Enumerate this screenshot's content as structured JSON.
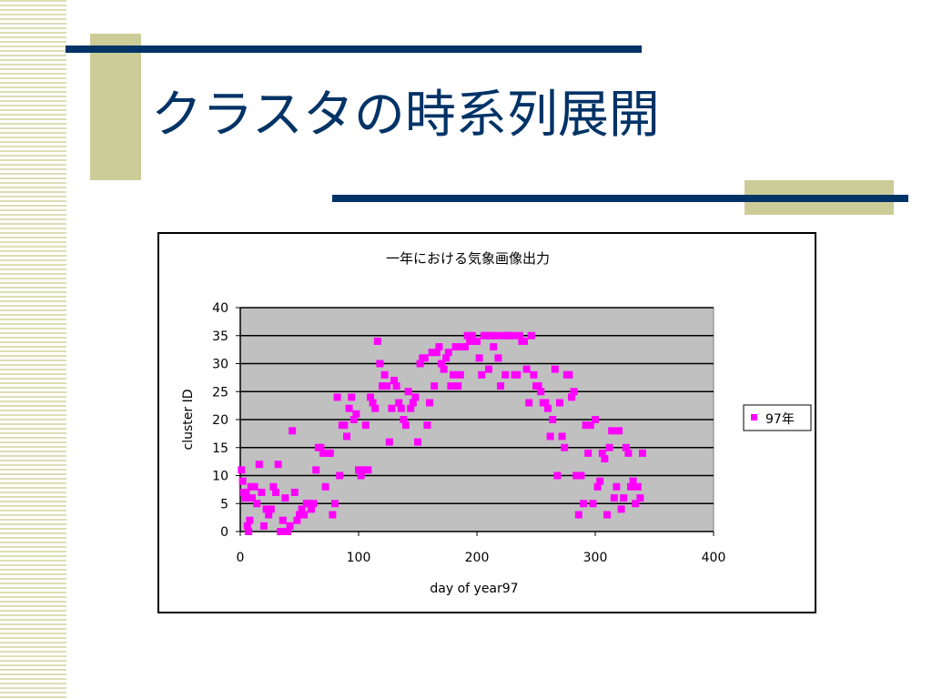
{
  "slide": {
    "title": "クラスタの時系列展開"
  },
  "colors": {
    "title": "#003366",
    "rule": "#003366",
    "accent": "#cccc99",
    "stripes": "#ddddb4",
    "plot_area": "#c0c0c0",
    "marker": "#ff00ff"
  },
  "chart_data": {
    "type": "scatter",
    "title": "一年における気象画像出力",
    "xlabel": "day of year97",
    "ylabel": "cluster ID",
    "xlim": [
      0,
      400
    ],
    "ylim": [
      0,
      40
    ],
    "x_ticks": [
      0,
      100,
      200,
      300,
      400
    ],
    "y_ticks": [
      0,
      5,
      10,
      15,
      20,
      25,
      30,
      35,
      40
    ],
    "grid": "horizontal",
    "plot_background": "gray",
    "legend_position": "right",
    "series": [
      {
        "name": "97年",
        "color": "#ff00ff",
        "marker": "square",
        "x": [
          1,
          2,
          3,
          4,
          5,
          6,
          7,
          8,
          9,
          10,
          12,
          14,
          16,
          18,
          20,
          22,
          24,
          26,
          28,
          30,
          32,
          34,
          36,
          38,
          40,
          42,
          44,
          46,
          48,
          50,
          52,
          54,
          56,
          58,
          60,
          62,
          64,
          66,
          68,
          70,
          72,
          74,
          76,
          78,
          80,
          82,
          84,
          86,
          88,
          90,
          92,
          94,
          96,
          98,
          100,
          102,
          104,
          106,
          108,
          110,
          112,
          114,
          116,
          118,
          120,
          122,
          124,
          126,
          128,
          130,
          132,
          134,
          136,
          138,
          140,
          142,
          144,
          146,
          148,
          150,
          152,
          154,
          156,
          158,
          160,
          162,
          164,
          166,
          168,
          170,
          172,
          174,
          176,
          178,
          180,
          182,
          184,
          186,
          188,
          190,
          192,
          194,
          196,
          198,
          200,
          202,
          204,
          206,
          208,
          210,
          212,
          214,
          216,
          218,
          220,
          222,
          224,
          226,
          228,
          230,
          232,
          234,
          236,
          238,
          240,
          242,
          244,
          246,
          248,
          250,
          252,
          254,
          256,
          258,
          260,
          262,
          264,
          266,
          268,
          270,
          272,
          274,
          276,
          278,
          280,
          282,
          284,
          286,
          288,
          290,
          292,
          294,
          296,
          298,
          300,
          302,
          304,
          306,
          308,
          310,
          312,
          314,
          316,
          318,
          320,
          322,
          324,
          326,
          328,
          330,
          332,
          334,
          336,
          338,
          340
        ],
        "y": [
          11,
          9,
          7,
          6,
          7,
          1,
          0,
          2,
          8,
          6,
          8,
          5,
          12,
          7,
          1,
          4,
          3,
          4,
          8,
          7,
          12,
          0,
          2,
          6,
          0,
          1,
          18,
          7,
          2,
          3,
          4,
          3,
          5,
          5,
          4,
          5,
          11,
          15,
          15,
          14,
          8,
          14,
          14,
          3,
          5,
          24,
          10,
          19,
          19,
          17,
          22,
          24,
          20,
          21,
          11,
          10,
          11,
          19,
          11,
          24,
          23,
          22,
          34,
          30,
          26,
          28,
          26,
          16,
          22,
          27,
          26,
          23,
          22,
          20,
          19,
          25,
          22,
          23,
          24,
          16,
          30,
          31,
          31,
          19,
          23,
          32,
          26,
          32,
          33,
          30,
          29,
          31,
          32,
          26,
          28,
          33,
          26,
          28,
          33,
          33,
          35,
          34,
          35,
          34,
          34,
          31,
          28,
          35,
          35,
          29,
          35,
          33,
          35,
          31,
          26,
          35,
          28,
          35,
          35,
          35,
          28,
          28,
          35,
          34,
          34,
          29,
          23,
          35,
          28,
          26,
          26,
          25,
          23,
          23,
          22,
          17,
          20,
          29,
          10,
          23,
          17,
          15,
          28,
          28,
          24,
          25,
          10,
          3,
          10,
          5,
          19,
          14,
          19,
          5,
          20,
          8,
          9,
          14,
          13,
          3,
          15,
          18,
          6,
          8,
          18,
          4,
          6,
          15,
          14,
          8,
          9,
          5,
          8,
          6,
          14
        ]
      }
    ]
  }
}
